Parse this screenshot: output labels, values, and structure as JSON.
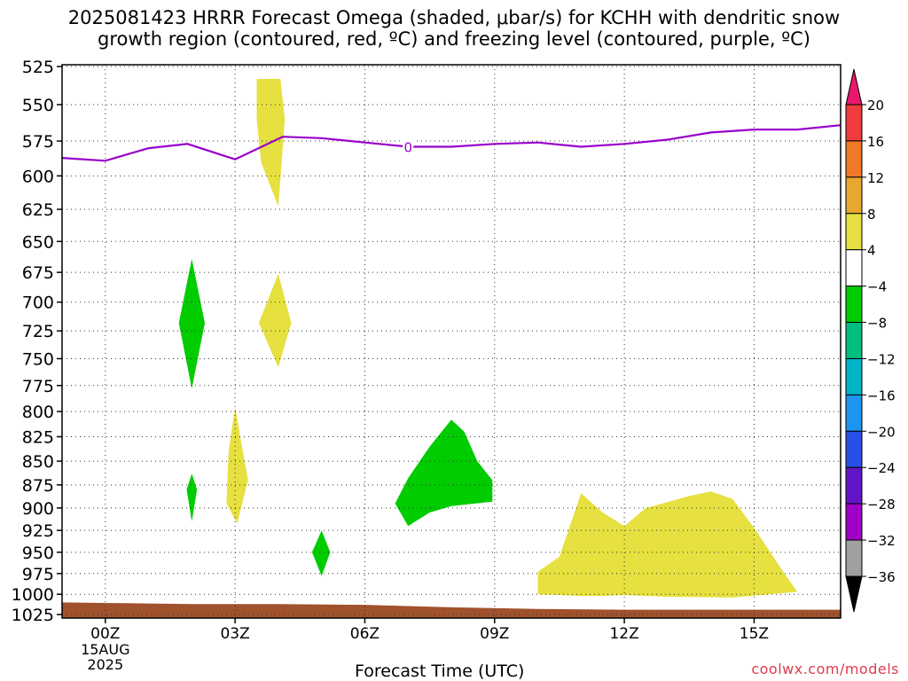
{
  "chart_data": {
    "type": "area",
    "title_lines": [
      "2025081423 HRRR Forecast Omega (shaded, μbar/s) for KCHH with dendritic snow",
      "growth region (contoured, red, ºC) and freezing level (contoured, purple, ºC)"
    ],
    "xlabel": "Forecast Time (UTC)",
    "ylabel": "",
    "x_range_hours": [
      -1.0,
      17.0
    ],
    "x_ticks": [
      {
        "hour": 0,
        "label": "00Z",
        "sub": [
          "15AUG",
          "2025"
        ]
      },
      {
        "hour": 3,
        "label": "03Z",
        "sub": []
      },
      {
        "hour": 6,
        "label": "06Z",
        "sub": []
      },
      {
        "hour": 9,
        "label": "09Z",
        "sub": []
      },
      {
        "hour": 12,
        "label": "12Z",
        "sub": []
      },
      {
        "hour": 15,
        "label": "15Z",
        "sub": []
      }
    ],
    "y_axis": "pressure (mb), log scale, inverted",
    "ylim": [
      1025,
      520
    ],
    "y_ticks": [
      525,
      550,
      575,
      600,
      625,
      650,
      675,
      700,
      725,
      750,
      775,
      800,
      825,
      850,
      875,
      900,
      925,
      950,
      975,
      1000,
      1025
    ],
    "grid": true,
    "freezing_level": {
      "label": "0",
      "color": "#9900cc",
      "points": [
        [
          -1,
          587
        ],
        [
          0,
          589
        ],
        [
          1,
          580
        ],
        [
          1.9,
          577
        ],
        [
          3,
          588
        ],
        [
          4.1,
          572
        ],
        [
          5,
          573
        ],
        [
          6,
          576
        ],
        [
          7,
          579
        ],
        [
          8,
          579
        ],
        [
          9,
          577
        ],
        [
          10,
          576
        ],
        [
          11,
          579
        ],
        [
          12,
          577
        ],
        [
          13,
          574
        ],
        [
          14,
          569
        ],
        [
          15,
          567
        ],
        [
          16,
          567
        ],
        [
          17,
          564
        ]
      ]
    },
    "ground": {
      "color": "#a0522d",
      "points": [
        [
          -1,
          1010
        ],
        [
          0.5,
          1011
        ],
        [
          2,
          1012
        ],
        [
          4,
          1012
        ],
        [
          6,
          1013
        ],
        [
          8,
          1016
        ],
        [
          10,
          1018
        ],
        [
          12,
          1019
        ],
        [
          14,
          1019
        ],
        [
          17,
          1019
        ]
      ]
    },
    "omega_regions": [
      {
        "sign": "positive",
        "range": "4 to 8",
        "color": "#e6e040",
        "points": [
          [
            3.5,
            533
          ],
          [
            4.05,
            533
          ],
          [
            4.15,
            560
          ],
          [
            4.0,
            623
          ],
          [
            3.6,
            590
          ],
          [
            3.5,
            560
          ]
        ]
      },
      {
        "sign": "positive",
        "range": "4 to 8",
        "color": "#e6e040",
        "points": [
          [
            4.0,
            676
          ],
          [
            4.3,
            718
          ],
          [
            4.0,
            758
          ],
          [
            3.55,
            718
          ]
        ]
      },
      {
        "sign": "positive",
        "range": "4 to 8",
        "color": "#e6e040",
        "points": [
          [
            3.0,
            796
          ],
          [
            3.3,
            870
          ],
          [
            3.05,
            917
          ],
          [
            2.8,
            895
          ],
          [
            2.85,
            840
          ]
        ]
      },
      {
        "sign": "positive",
        "range": "4 to 8",
        "color": "#e6e040",
        "points": [
          [
            10.0,
            1000
          ],
          [
            10.0,
            973
          ],
          [
            10.5,
            955
          ],
          [
            11.0,
            884
          ],
          [
            11.5,
            905
          ],
          [
            12.0,
            920
          ],
          [
            12.5,
            900
          ],
          [
            13.5,
            887
          ],
          [
            14.0,
            882
          ],
          [
            14.5,
            890
          ],
          [
            15.0,
            922
          ],
          [
            15.7,
            975
          ],
          [
            16.0,
            997
          ],
          [
            14.5,
            1004
          ],
          [
            13.0,
            1003
          ],
          [
            12.0,
            1001
          ],
          [
            11.5,
            1002
          ],
          [
            11.0,
            1002
          ]
        ]
      },
      {
        "sign": "negative",
        "range": "-8 to -4",
        "color": "#00cc00",
        "points": [
          [
            2.0,
            664
          ],
          [
            2.3,
            718
          ],
          [
            2.0,
            778
          ],
          [
            1.7,
            718
          ]
        ]
      },
      {
        "sign": "negative",
        "range": "-8 to -4",
        "color": "#00cc00",
        "points": [
          [
            2.0,
            863
          ],
          [
            2.12,
            880
          ],
          [
            2.0,
            915
          ],
          [
            1.88,
            880
          ]
        ]
      },
      {
        "sign": "negative",
        "range": "-8 to -4",
        "color": "#00cc00",
        "points": [
          [
            5.0,
            925
          ],
          [
            5.2,
            950
          ],
          [
            5.0,
            978
          ],
          [
            4.78,
            950
          ]
        ]
      },
      {
        "sign": "negative",
        "range": "-8 to -4",
        "color": "#00cc00",
        "points": [
          [
            8.0,
            808
          ],
          [
            8.3,
            820
          ],
          [
            8.6,
            850
          ],
          [
            8.95,
            870
          ],
          [
            8.95,
            893
          ],
          [
            8.0,
            898
          ],
          [
            7.5,
            905
          ],
          [
            7.0,
            920
          ],
          [
            6.7,
            895
          ],
          [
            7.0,
            868
          ],
          [
            7.5,
            835
          ]
        ]
      }
    ],
    "colorbar": {
      "labels": [
        "20",
        "16",
        "12",
        "8",
        "4",
        "−4",
        "−8",
        "−12",
        "−16",
        "−20",
        "−24",
        "−28",
        "−32",
        "−36"
      ],
      "segments_top_to_bottom": [
        "#e8176c",
        "#f03c3c",
        "#f07828",
        "#e8a830",
        "#e6e040",
        "#ffffff",
        "#00cc00",
        "#00c080",
        "#00b4c8",
        "#1e96f0",
        "#2850e6",
        "#6414c8",
        "#a000c8",
        "#a0a0a0",
        "#000000"
      ]
    }
  },
  "credit": "coolwx.com/models"
}
